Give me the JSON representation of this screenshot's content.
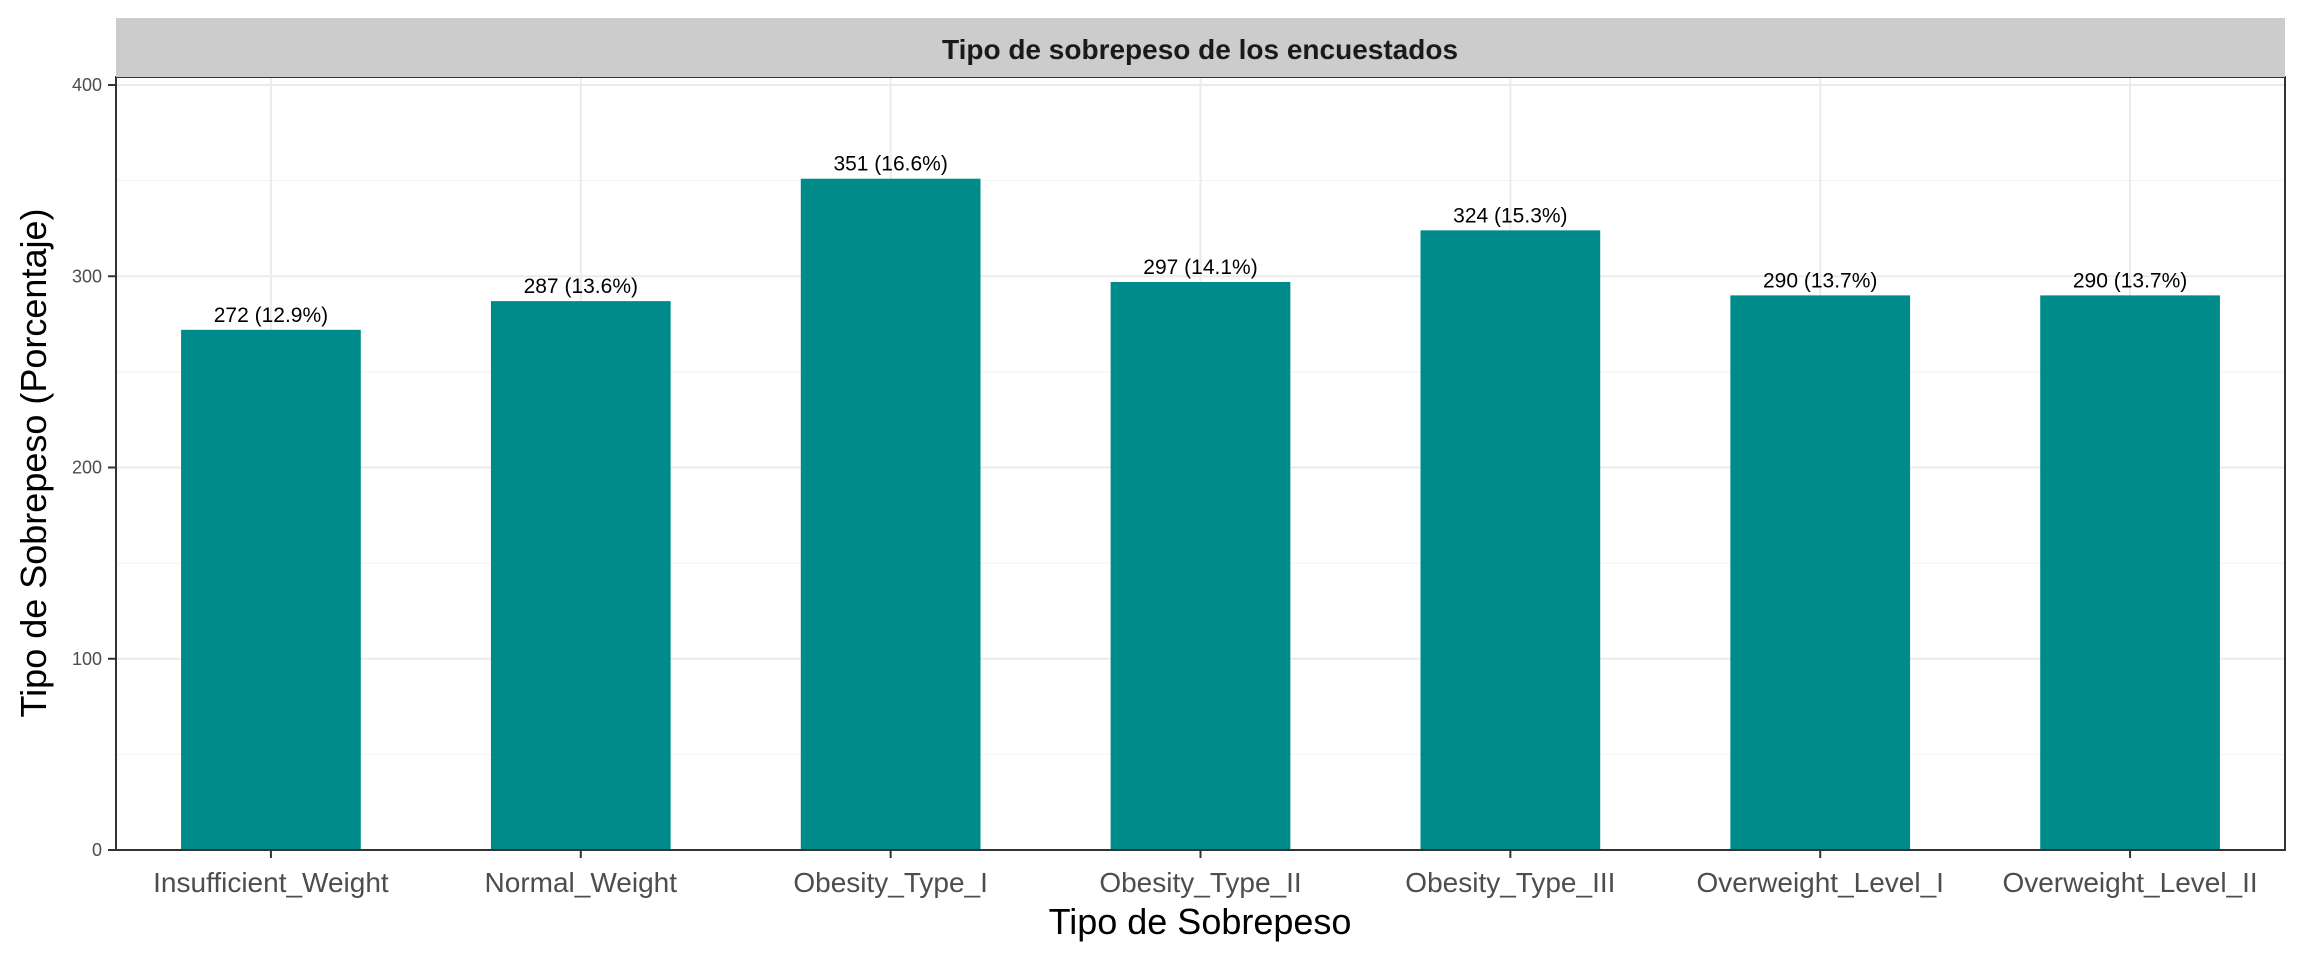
{
  "chart_data": {
    "type": "bar",
    "title": "Tipo de sobrepeso de los encuestados",
    "xlabel": "Tipo de Sobrepeso",
    "ylabel": "Tipo de Sobrepeso (Porcentaje)",
    "categories": [
      "Insufficient_Weight",
      "Normal_Weight",
      "Obesity_Type_I",
      "Obesity_Type_II",
      "Obesity_Type_III",
      "Overweight_Level_I",
      "Overweight_Level_II"
    ],
    "values": [
      272,
      287,
      351,
      297,
      324,
      290,
      290
    ],
    "data_labels": [
      "272 (12.9%)",
      "287 (13.6%)",
      "351 (16.6%)",
      "297 (14.1%)",
      "324 (15.3%)",
      "290 (13.7%)",
      "290 (13.7%)"
    ],
    "ylim": [
      0,
      400
    ],
    "yticks": [
      0,
      100,
      200,
      300,
      400
    ],
    "grid": true,
    "legend": "none",
    "colors": {
      "bar": "#008B8B",
      "strip": "#CCCCCC",
      "grid": "#EBEBEB",
      "panel_border": "#333333",
      "text": "#000000",
      "tick_text": "#4D4D4D"
    }
  }
}
